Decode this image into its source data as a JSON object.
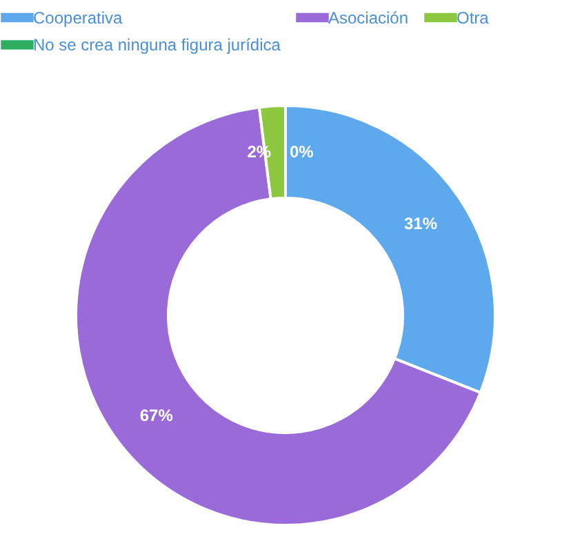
{
  "chart_data": {
    "type": "donut",
    "categories": [
      "Cooperativa",
      "Asociación",
      "Otra",
      "No se crea ninguna figura jurídica"
    ],
    "values": [
      31,
      67,
      2,
      0
    ],
    "colors": [
      "#5ea8ee",
      "#9a6ad8",
      "#8dc63f",
      "#2fae62"
    ],
    "value_labels": [
      "31%",
      "67%",
      "2%",
      "0%"
    ],
    "legend": "top"
  }
}
